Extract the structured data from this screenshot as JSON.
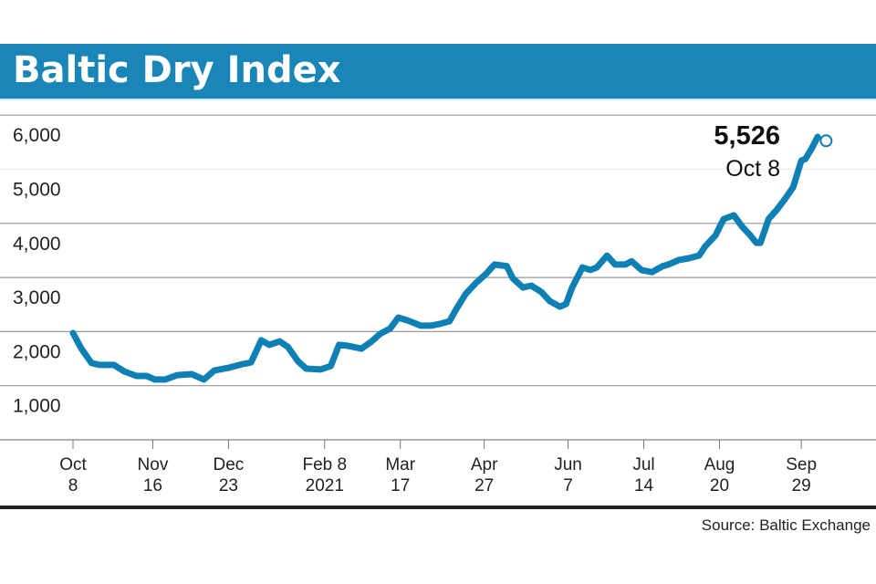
{
  "chart_data": {
    "type": "line",
    "title": "Baltic Dry Index",
    "source": "Source: Baltic Exchange",
    "ylim": [
      0,
      6000
    ],
    "yticks": [
      {
        "value": 6000,
        "label": "6,000"
      },
      {
        "value": 5000,
        "label": "5,000"
      },
      {
        "value": 4000,
        "label": "4,000"
      },
      {
        "value": 3000,
        "label": "3,000"
      },
      {
        "value": 2000,
        "label": "2,000"
      },
      {
        "value": 1000,
        "label": "1,000"
      }
    ],
    "xticks": [
      {
        "date": "2020-10-08",
        "line1": "Oct",
        "line2": "8"
      },
      {
        "date": "2020-11-16",
        "line1": "Nov",
        "line2": "16"
      },
      {
        "date": "2020-12-23",
        "line1": "Dec",
        "line2": "23"
      },
      {
        "date": "2021-02-08",
        "line1": "Feb 8",
        "line2": "2021"
      },
      {
        "date": "2021-03-17",
        "line1": "Mar",
        "line2": "17"
      },
      {
        "date": "2021-04-27",
        "line1": "Apr",
        "line2": "27"
      },
      {
        "date": "2021-06-07",
        "line1": "Jun",
        "line2": "7"
      },
      {
        "date": "2021-07-14",
        "line1": "Jul",
        "line2": "14"
      },
      {
        "date": "2021-08-20",
        "line1": "Aug",
        "line2": "20"
      },
      {
        "date": "2021-09-29",
        "line1": "Sep",
        "line2": "29"
      }
    ],
    "grid": true,
    "line_color": "#0f80b3",
    "annotation": {
      "value_label": "5,526",
      "date_label": "Oct 8",
      "date": "2021-10-08",
      "value": 5526
    },
    "x": [
      "2020-10-08",
      "2020-10-12",
      "2020-10-17",
      "2020-10-21",
      "2020-10-28",
      "2020-11-02",
      "2020-11-08",
      "2020-11-13",
      "2020-11-17",
      "2020-11-22",
      "2020-11-28",
      "2020-12-05",
      "2020-12-11",
      "2020-12-16",
      "2020-12-23",
      "2020-12-30",
      "2021-01-03",
      "2021-01-08",
      "2021-01-12",
      "2021-01-17",
      "2021-01-21",
      "2021-01-26",
      "2021-01-30",
      "2021-02-06",
      "2021-02-11",
      "2021-02-15",
      "2021-02-19",
      "2021-02-26",
      "2021-03-03",
      "2021-03-07",
      "2021-03-12",
      "2021-03-16",
      "2021-03-21",
      "2021-03-27",
      "2021-04-01",
      "2021-04-05",
      "2021-04-10",
      "2021-04-13",
      "2021-04-18",
      "2021-04-23",
      "2021-04-28",
      "2021-05-02",
      "2021-05-08",
      "2021-05-11",
      "2021-05-16",
      "2021-05-20",
      "2021-05-25",
      "2021-05-29",
      "2021-06-03",
      "2021-06-06",
      "2021-06-09",
      "2021-06-14",
      "2021-06-18",
      "2021-06-21",
      "2021-06-26",
      "2021-06-30",
      "2021-07-05",
      "2021-07-08",
      "2021-07-13",
      "2021-07-18",
      "2021-07-23",
      "2021-07-26",
      "2021-07-31",
      "2021-08-05",
      "2021-08-10",
      "2021-08-13",
      "2021-08-18",
      "2021-08-22",
      "2021-08-27",
      "2021-08-31",
      "2021-09-04",
      "2021-09-07",
      "2021-09-09",
      "2021-09-13",
      "2021-09-17",
      "2021-09-21",
      "2021-09-25",
      "2021-09-29",
      "2021-10-01",
      "2021-10-04",
      "2021-10-07"
    ],
    "values": [
      1973,
      1690,
      1420,
      1385,
      1385,
      1265,
      1180,
      1180,
      1115,
      1115,
      1195,
      1215,
      1115,
      1280,
      1330,
      1400,
      1430,
      1840,
      1755,
      1820,
      1720,
      1450,
      1315,
      1300,
      1365,
      1755,
      1740,
      1685,
      1820,
      1955,
      2055,
      2260,
      2200,
      2110,
      2110,
      2140,
      2190,
      2395,
      2700,
      2900,
      3070,
      3240,
      3210,
      2985,
      2815,
      2850,
      2730,
      2565,
      2460,
      2510,
      2815,
      3185,
      3140,
      3185,
      3405,
      3240,
      3240,
      3300,
      3135,
      3100,
      3205,
      3240,
      3320,
      3355,
      3405,
      3575,
      3775,
      4080,
      4150,
      3945,
      3780,
      3640,
      3640,
      4080,
      4250,
      4450,
      4670,
      5160,
      5190,
      5380,
      5600
    ]
  }
}
